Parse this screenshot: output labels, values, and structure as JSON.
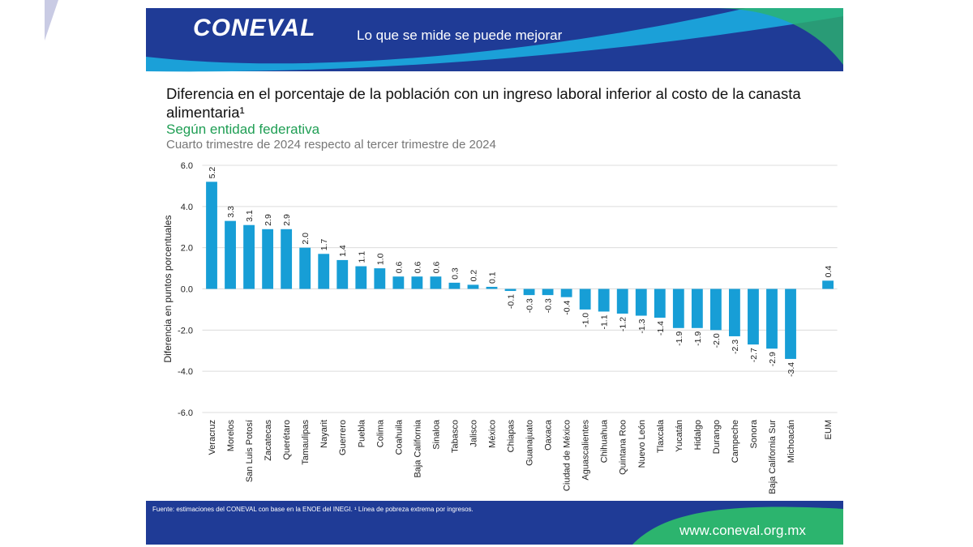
{
  "header": {
    "logo": "CONEVAL",
    "slogan": "Lo que se mide se puede mejorar"
  },
  "chart_data": {
    "type": "bar",
    "title": "Diferencia en el porcentaje de la población con un ingreso laboral inferior al costo de la canasta alimentaria¹",
    "subtitle": "Según entidad federativa",
    "period": "Cuarto trimestre de 2024 respecto al tercer trimestre de 2024",
    "y_label": "Diferencia en puntos porcentuales",
    "categories": [
      "Veracruz",
      "Morelos",
      "San Luis Potosí",
      "Zacatecas",
      "Querétaro",
      "Tamaulipas",
      "Nayarit",
      "Guerrero",
      "Puebla",
      "Colima",
      "Coahuila",
      "Baja California",
      "Sinaloa",
      "Tabasco",
      "Jalisco",
      "México",
      "Chiapas",
      "Guanajuato",
      "Oaxaca",
      "Ciudad de México",
      "Aguascalientes",
      "Chihuahua",
      "Quintana Roo",
      "Nuevo León",
      "Tlaxcala",
      "Yucatán",
      "Hidalgo",
      "Durango",
      "Campeche",
      "Sonora",
      "Baja California Sur",
      "Michoacán",
      null,
      "EUM"
    ],
    "values": [
      5.2,
      3.3,
      3.1,
      2.9,
      2.9,
      2.0,
      1.7,
      1.4,
      1.1,
      1.0,
      0.6,
      0.6,
      0.6,
      0.3,
      0.2,
      0.1,
      -0.1,
      -0.3,
      -0.3,
      -0.4,
      -1.0,
      -1.1,
      -1.2,
      -1.3,
      -1.4,
      -1.9,
      -1.9,
      -2.0,
      -2.3,
      -2.7,
      -2.9,
      -3.4,
      null,
      0.4
    ],
    "value_labels": [
      "5.2",
      "3.3",
      "3.1",
      "2.9",
      "2.9",
      "2.0",
      "1.7",
      "1.4",
      "1.1",
      "1.0",
      "0.6",
      "0.6",
      "0.6",
      "0.3",
      "0.2",
      "0.1",
      "-0.1",
      "-0.3",
      "-0.3",
      "-0.4",
      "-1.0",
      "-1.1",
      "-1.2",
      "-1.3",
      "-1.4",
      "-1.9",
      "-1.9",
      "-2.0",
      "-2.3",
      "-2.7",
      "-2.9",
      "-3.4",
      null,
      "0.4"
    ],
    "color": "#179ed6",
    "ylim": [
      -6,
      6
    ],
    "yticks": [
      {
        "value": -6,
        "label": "-6.0"
      },
      {
        "value": -4,
        "label": "-4.0"
      },
      {
        "value": -2,
        "label": "-2.0"
      },
      {
        "value": 0,
        "label": "0.0"
      },
      {
        "value": 2,
        "label": "2.0"
      },
      {
        "value": 4,
        "label": "4.0"
      },
      {
        "value": 6,
        "label": "6.0"
      }
    ],
    "grid": true
  },
  "footer": {
    "source": "Fuente: estimaciones del CONEVAL con base en la ENOE del INEGI. ¹ Línea de pobreza extrema por ingresos.",
    "website": "www.coneval.org.mx"
  }
}
